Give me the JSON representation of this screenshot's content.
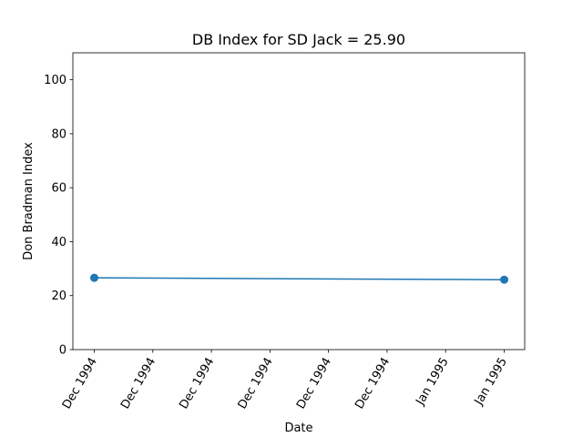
{
  "chart_data": {
    "type": "line",
    "title": "DB Index for SD Jack = 25.90",
    "xlabel": "Date",
    "ylabel": "Don Bradman Index",
    "x_tick_labels": [
      "Dec 1994",
      "Dec 1994",
      "Dec 1994",
      "Dec 1994",
      "Dec 1994",
      "Dec 1994",
      "Jan 1995",
      "Jan 1995"
    ],
    "y_ticks": [
      0,
      20,
      40,
      60,
      80,
      100
    ],
    "ylim": [
      0,
      110
    ],
    "series": [
      {
        "color": "#1f77b4",
        "marker": "circle",
        "points": [
          {
            "x": "first tick",
            "y": 26.6
          },
          {
            "x": "last tick",
            "y": 25.9
          }
        ]
      }
    ],
    "grid": false,
    "legend": "none"
  }
}
